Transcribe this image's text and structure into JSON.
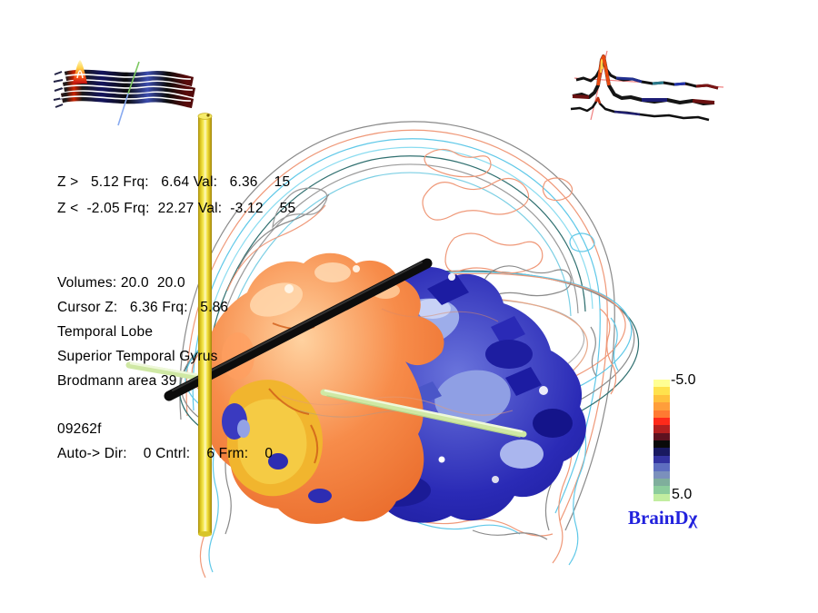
{
  "app": {
    "logo_text": "BrainDχ",
    "brand_color": "#2222dd"
  },
  "readouts": {
    "z_upper": "Z >   5.12 Frq:   6.64 Val:   6.36    15",
    "z_lower": "Z <  -2.05 Frq:  22.27 Val:  -3.12    55",
    "volumes": "Volumes: 20.0  20.0",
    "cursor": "Cursor Z:   6.36 Frq:   5.86",
    "anatomy_lobe": "Temporal Lobe",
    "anatomy_gyrus": "Superior Temporal Gyrus",
    "anatomy_brodmann": "Brodmann area 39",
    "subject_id": "09262f",
    "auto_status": "Auto-> Dir:    0 Cntrl:    6 Frm:    0"
  },
  "colorbar": {
    "top_label": "-5.0",
    "bottom_label": "5.0",
    "colors": [
      "#ffff94",
      "#ffe24d",
      "#ffc13d",
      "#ff9e3b",
      "#ff7a32",
      "#ff2a1a",
      "#b32020",
      "#5e1220",
      "#0a0a0a",
      "#191960",
      "#3333a0",
      "#5e6ec0",
      "#7b90bc",
      "#7fae9c",
      "#8ccc9c",
      "#c2eda0"
    ]
  },
  "scene": {
    "marker_colors": {
      "cursor_cylinder": "#f2e23c",
      "probe_rod": "#0c0c0c",
      "trajectory_rod": "#cfe8a4"
    },
    "cluster_colors": {
      "warm_cluster": "#f78c4a",
      "cool_cluster": "#2a2ab6"
    },
    "contour_palette": [
      "#5fc8e8",
      "#ef9878",
      "#8a8a8a",
      "#2f6f6f"
    ]
  }
}
